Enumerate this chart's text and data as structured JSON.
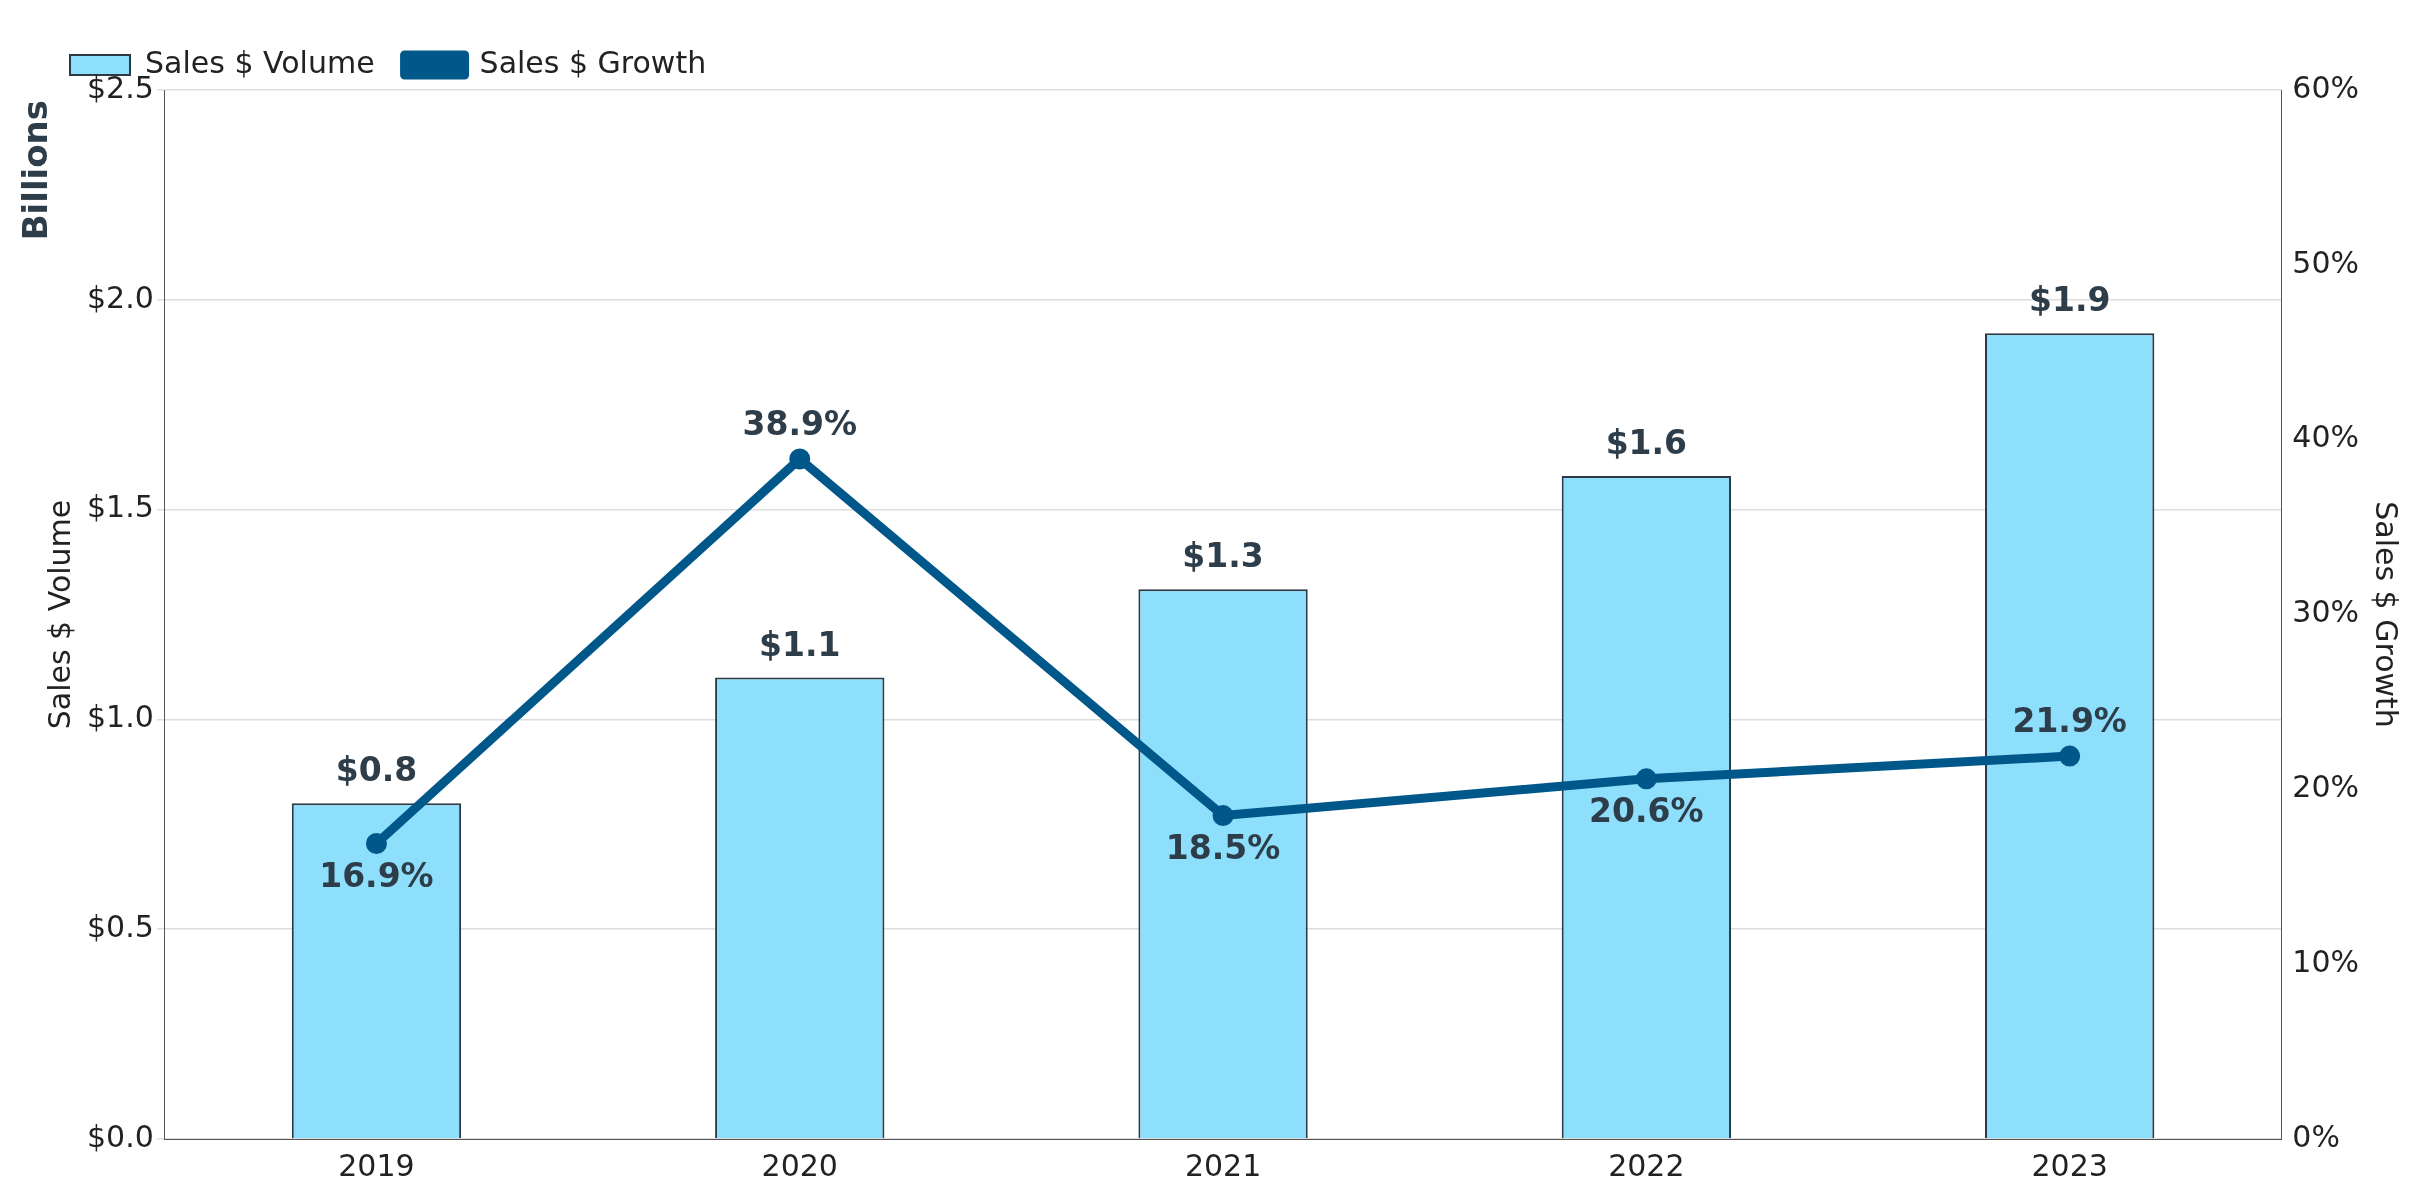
{
  "chart_data": {
    "type": "bar",
    "categories": [
      "2019",
      "2020",
      "2021",
      "2022",
      "2023"
    ],
    "ylabel": "Sales $ Volume",
    "y2label": "Sales $ Growth",
    "annotations": [
      "Billions"
    ],
    "series": [
      {
        "name": "Sales $ Volume",
        "color": "#8ddffc",
        "values": [
          0.8,
          1.1,
          1.31,
          1.58,
          1.92
        ],
        "value_labels": [
          "$0.8",
          "$1.1",
          "$1.3",
          "$1.6",
          "$1.9"
        ]
      },
      {
        "name": "Sales $ Growth",
        "type": "line",
        "axis": "y2",
        "color": "#00578a",
        "values": [
          16.9,
          38.9,
          18.5,
          20.6,
          21.9
        ],
        "value_labels": [
          "16.9%",
          "38.9%",
          "18.5%",
          "20.6%",
          "21.9%"
        ]
      }
    ],
    "ylim": [
      0,
      2.5
    ],
    "yticks": [
      {
        "value": 0,
        "label": "$0.0"
      },
      {
        "value": 0.5,
        "label": "$0.5"
      },
      {
        "value": 1,
        "label": "$1.0"
      },
      {
        "value": 1.5,
        "label": "$1.5"
      },
      {
        "value": 2,
        "label": "$2.0"
      },
      {
        "value": 2.5,
        "label": "$2.5"
      }
    ],
    "y2lim": [
      0,
      60
    ],
    "y2ticks": [
      {
        "value": 0,
        "label": "0%"
      },
      {
        "value": 10,
        "label": "10%"
      },
      {
        "value": 20,
        "label": "20%"
      },
      {
        "value": 30,
        "label": "30%"
      },
      {
        "value": 40,
        "label": "40%"
      },
      {
        "value": 50,
        "label": "50%"
      },
      {
        "value": 60,
        "label": "60%"
      }
    ],
    "grid": "y",
    "legend": "top left",
    "marker": "circle",
    "line_style": "solid"
  }
}
